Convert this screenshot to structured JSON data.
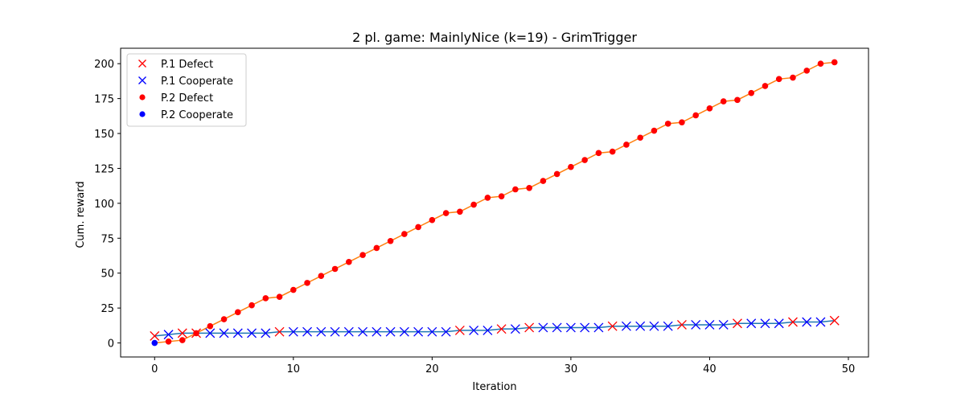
{
  "chart_data": {
    "type": "line",
    "title": "2 pl. game: MainlyNice (k=19) - GrimTrigger",
    "xlabel": "Iteration",
    "ylabel": "Cum. reward",
    "xlim": [
      -2.45,
      51.45
    ],
    "ylim": [
      -10.05,
      211.05
    ],
    "xticks": [
      0,
      10,
      20,
      30,
      40,
      50
    ],
    "yticks": [
      0,
      25,
      50,
      75,
      100,
      125,
      150,
      175,
      200
    ],
    "legend_position": "upper-left",
    "grid": false,
    "colors": {
      "p1_line": "#1f77b4",
      "p2_line": "#ff7f0e",
      "defect": "#ff0000",
      "cooperate": "#0000ff"
    },
    "x": [
      0,
      1,
      2,
      3,
      4,
      5,
      6,
      7,
      8,
      9,
      10,
      11,
      12,
      13,
      14,
      15,
      16,
      17,
      18,
      19,
      20,
      21,
      22,
      23,
      24,
      25,
      26,
      27,
      28,
      29,
      30,
      31,
      32,
      33,
      34,
      35,
      36,
      37,
      38,
      39,
      40,
      41,
      42,
      43,
      44,
      45,
      46,
      47,
      48,
      49
    ],
    "series": [
      {
        "name": "P.1",
        "values": [
          5,
          6,
          7,
          7,
          7,
          7,
          7,
          7,
          7,
          8,
          8,
          8,
          8,
          8,
          8,
          8,
          8,
          8,
          8,
          8,
          8,
          8,
          9,
          9,
          9,
          10,
          10,
          11,
          11,
          11,
          11,
          11,
          11,
          12,
          12,
          12,
          12,
          12,
          13,
          13,
          13,
          13,
          14,
          14,
          14,
          14,
          15,
          15,
          15,
          16
        ],
        "actions": [
          "D",
          "C",
          "D",
          "D",
          "C",
          "C",
          "C",
          "C",
          "C",
          "D",
          "C",
          "C",
          "C",
          "C",
          "C",
          "C",
          "C",
          "C",
          "C",
          "C",
          "C",
          "C",
          "D",
          "C",
          "C",
          "D",
          "C",
          "D",
          "C",
          "C",
          "C",
          "C",
          "C",
          "D",
          "C",
          "C",
          "C",
          "C",
          "D",
          "C",
          "C",
          "C",
          "D",
          "C",
          "C",
          "C",
          "D",
          "C",
          "C",
          "D"
        ]
      },
      {
        "name": "P.2",
        "values": [
          0,
          1,
          2,
          7,
          12,
          17,
          22,
          27,
          32,
          33,
          38,
          43,
          48,
          53,
          58,
          63,
          68,
          73,
          78,
          83,
          88,
          93,
          94,
          99,
          104,
          105,
          110,
          111,
          116,
          121,
          126,
          131,
          136,
          137,
          142,
          147,
          152,
          157,
          158,
          163,
          168,
          173,
          174,
          179,
          184,
          189,
          190,
          195,
          200,
          201
        ],
        "actions": [
          "C",
          "D",
          "D",
          "D",
          "D",
          "D",
          "D",
          "D",
          "D",
          "D",
          "D",
          "D",
          "D",
          "D",
          "D",
          "D",
          "D",
          "D",
          "D",
          "D",
          "D",
          "D",
          "D",
          "D",
          "D",
          "D",
          "D",
          "D",
          "D",
          "D",
          "D",
          "D",
          "D",
          "D",
          "D",
          "D",
          "D",
          "D",
          "D",
          "D",
          "D",
          "D",
          "D",
          "D",
          "D",
          "D",
          "D",
          "D",
          "D",
          "D"
        ]
      }
    ],
    "legend": [
      {
        "label": "P.1 Defect",
        "marker": "x",
        "color": "#ff0000"
      },
      {
        "label": "P.1 Cooperate",
        "marker": "x",
        "color": "#0000ff"
      },
      {
        "label": "P.2 Defect",
        "marker": "dot",
        "color": "#ff0000"
      },
      {
        "label": "P.2 Cooperate",
        "marker": "dot",
        "color": "#0000ff"
      }
    ]
  }
}
